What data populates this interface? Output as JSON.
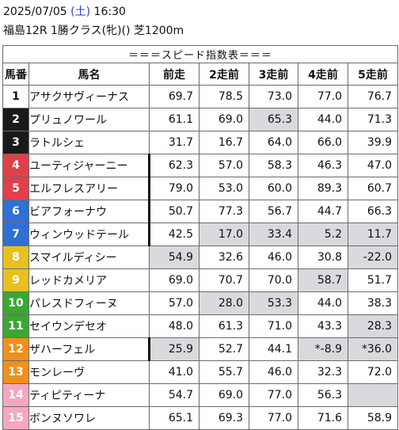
{
  "header": {
    "date": "2025/07/05",
    "day_open": "(",
    "day": "土",
    "day_close": ")",
    "time": "16:30",
    "race": "福島12R 1勝クラス(牝)() 芝1200m"
  },
  "table": {
    "title": "＝＝＝スピード指数表＝＝＝",
    "columns": [
      "馬番",
      "馬名",
      "前走",
      "2走前",
      "3走前",
      "4走前",
      "5走前"
    ],
    "rows": [
      {
        "no": "1",
        "name": "アサクサヴィーナス",
        "bg": "#ffffff",
        "fg": "#111111",
        "bar": false,
        "vals": [
          "69.7",
          "78.5",
          "73.0",
          "77.0",
          "76.7"
        ],
        "shade": [
          false,
          false,
          false,
          false,
          false
        ]
      },
      {
        "no": "2",
        "name": "プリュノワール",
        "bg": "#1a1a1a",
        "fg": "#ffffff",
        "bar": false,
        "vals": [
          "61.1",
          "69.0",
          "65.3",
          "44.0",
          "71.3"
        ],
        "shade": [
          false,
          false,
          true,
          false,
          false
        ]
      },
      {
        "no": "3",
        "name": "ラトルシェ",
        "bg": "#1a1a1a",
        "fg": "#ffffff",
        "bar": false,
        "vals": [
          "31.7",
          "16.7",
          "64.0",
          "66.0",
          "39.9"
        ],
        "shade": [
          false,
          false,
          false,
          false,
          false
        ]
      },
      {
        "no": "4",
        "name": "ユーティジャーニー",
        "bg": "#e0404a",
        "fg": "#ffffff",
        "bar": true,
        "vals": [
          "62.3",
          "57.0",
          "58.3",
          "46.3",
          "47.0"
        ],
        "shade": [
          false,
          false,
          false,
          false,
          false
        ]
      },
      {
        "no": "5",
        "name": "エルフレスアリー",
        "bg": "#e0404a",
        "fg": "#ffffff",
        "bar": true,
        "vals": [
          "79.0",
          "53.0",
          "60.0",
          "89.3",
          "60.7"
        ],
        "shade": [
          false,
          false,
          false,
          false,
          false
        ]
      },
      {
        "no": "6",
        "name": "ビアフォーナウ",
        "bg": "#2f6fd6",
        "fg": "#ffffff",
        "bar": true,
        "vals": [
          "50.7",
          "77.3",
          "56.7",
          "44.7",
          "66.3"
        ],
        "shade": [
          false,
          false,
          false,
          false,
          false
        ]
      },
      {
        "no": "7",
        "name": "ウィンウッドテール",
        "bg": "#2f6fd6",
        "fg": "#ffffff",
        "bar": true,
        "vals": [
          "42.5",
          "17.0",
          "33.4",
          "5.2",
          "11.7"
        ],
        "shade": [
          false,
          true,
          true,
          true,
          true
        ]
      },
      {
        "no": "8",
        "name": "スマイルディシー",
        "bg": "#e8c020",
        "fg": "#ffffff",
        "bar": false,
        "vals": [
          "54.9",
          "32.6",
          "46.0",
          "30.8",
          "-22.0"
        ],
        "shade": [
          true,
          false,
          false,
          false,
          true
        ]
      },
      {
        "no": "9",
        "name": "レッドカメリア",
        "bg": "#e8c020",
        "fg": "#ffffff",
        "bar": false,
        "vals": [
          "69.0",
          "70.7",
          "70.0",
          "58.7",
          "51.7"
        ],
        "shade": [
          false,
          false,
          false,
          true,
          false
        ]
      },
      {
        "no": "10",
        "name": "パレスドフィーヌ",
        "bg": "#3aa832",
        "fg": "#ffffff",
        "bar": false,
        "vals": [
          "57.0",
          "28.0",
          "53.3",
          "44.0",
          "38.3"
        ],
        "shade": [
          false,
          true,
          true,
          false,
          false
        ]
      },
      {
        "no": "11",
        "name": "セイウンデセオ",
        "bg": "#3aa832",
        "fg": "#ffffff",
        "bar": false,
        "vals": [
          "48.0",
          "61.3",
          "71.0",
          "43.3",
          "28.3"
        ],
        "shade": [
          false,
          false,
          false,
          false,
          true
        ]
      },
      {
        "no": "12",
        "name": "ザハーフェル",
        "bg": "#f0901c",
        "fg": "#ffffff",
        "bar": true,
        "vals": [
          "25.9",
          "52.7",
          "44.1",
          "*-8.9",
          "*36.0"
        ],
        "shade": [
          true,
          false,
          false,
          true,
          true
        ]
      },
      {
        "no": "13",
        "name": "モンレーヴ",
        "bg": "#f0901c",
        "fg": "#ffffff",
        "bar": false,
        "vals": [
          "41.0",
          "55.7",
          "46.0",
          "32.3",
          "72.0"
        ],
        "shade": [
          false,
          false,
          false,
          false,
          false
        ]
      },
      {
        "no": "14",
        "name": "ティピティーナ",
        "bg": "#f4a8bf",
        "fg": "#ffffff",
        "bar": false,
        "vals": [
          "54.7",
          "69.0",
          "77.0",
          "56.3",
          ""
        ],
        "shade": [
          false,
          false,
          false,
          false,
          true
        ]
      },
      {
        "no": "15",
        "name": "ボンヌソワレ",
        "bg": "#f4a8bf",
        "fg": "#ffffff",
        "bar": false,
        "vals": [
          "65.1",
          "69.3",
          "77.0",
          "71.6",
          "58.9"
        ],
        "shade": [
          false,
          false,
          false,
          false,
          false
        ]
      }
    ]
  }
}
